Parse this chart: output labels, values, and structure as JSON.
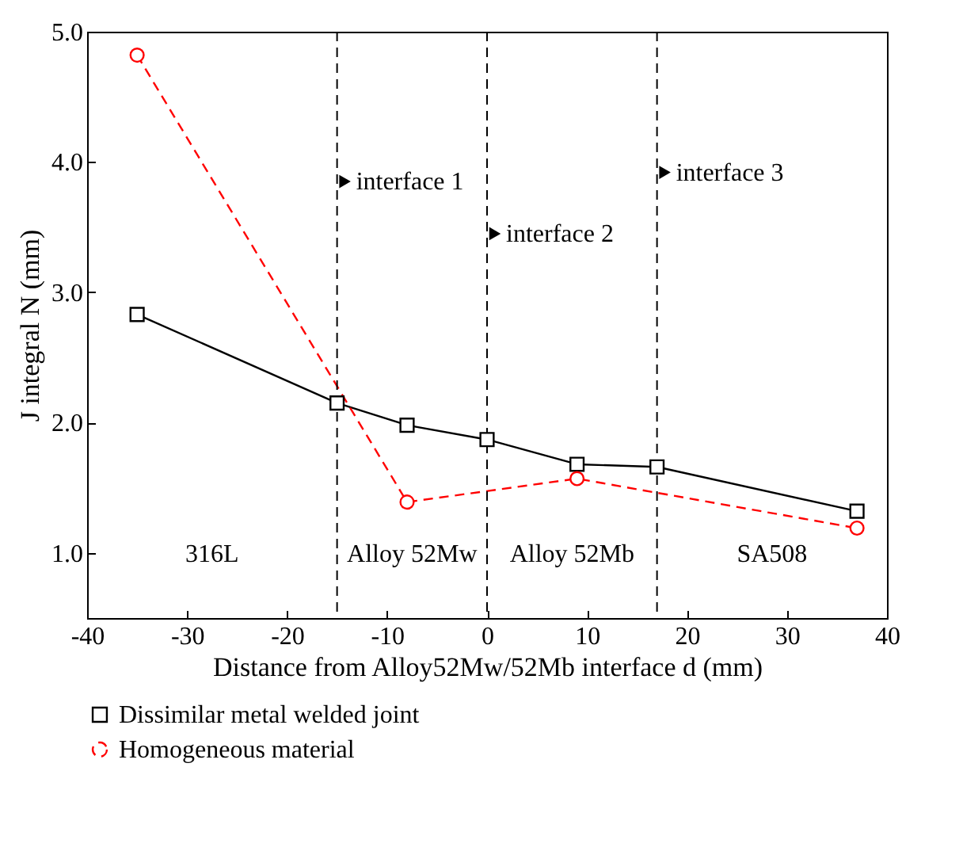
{
  "chart_data": {
    "type": "line",
    "xlabel": "Distance from Alloy52Mw/52Mb interface d (mm)",
    "ylabel": "J integral N (mm)",
    "xlim": [
      -40,
      40
    ],
    "xticks": [
      -40,
      -30,
      -20,
      -10,
      0,
      10,
      20,
      30,
      40
    ],
    "ylim": [
      0.5,
      5.0
    ],
    "yticks": [
      {
        "value": 1,
        "label": "1.0"
      },
      {
        "value": 2,
        "label": "2.0"
      },
      {
        "value": 3,
        "label": "3.0"
      },
      {
        "value": 4,
        "label": "4.0"
      },
      {
        "value": 5,
        "label": "5.0"
      }
    ],
    "grid": false,
    "legend": "bottom",
    "series": [
      {
        "name": "Dissimilar metal welded joint",
        "color": "#000000",
        "marker": "square",
        "line_style": "solid",
        "x": [
          -35,
          -15,
          -8,
          0,
          9,
          17,
          37
        ],
        "values": [
          2.83,
          2.15,
          1.98,
          1.87,
          1.68,
          1.66,
          1.32
        ]
      },
      {
        "name": "Homogeneous material",
        "color": "#ff0000",
        "marker": "circle",
        "line_style": "dashed",
        "x": [
          -35,
          -8,
          9,
          37
        ],
        "values": [
          4.82,
          1.39,
          1.57,
          1.19
        ]
      }
    ],
    "ref_lines": [
      {
        "axis": "x",
        "value": -15,
        "line_style": "dashed",
        "color": "#000000"
      },
      {
        "axis": "x",
        "value": 0,
        "line_style": "dashed",
        "color": "#000000"
      },
      {
        "axis": "x",
        "value": 17,
        "line_style": "dashed",
        "color": "#000000"
      }
    ],
    "annotations": [
      {
        "text": "interface 1",
        "x": -15,
        "y": 3.85
      },
      {
        "text": "interface 2",
        "x": 0,
        "y": 3.45
      },
      {
        "text": "interface 3",
        "x": 17,
        "y": 3.92
      },
      "316L",
      "Alloy 52Mw",
      "Alloy 52Mb",
      "SA508"
    ]
  }
}
